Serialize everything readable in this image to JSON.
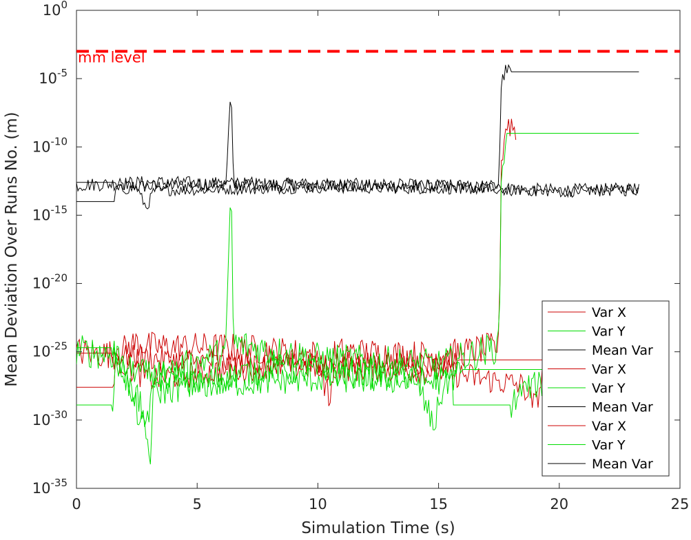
{
  "chart_data": {
    "type": "line",
    "title": "",
    "xlabel": "Simulation Time (s)",
    "ylabel": "Mean Deviation Over Runs No. (m)",
    "xlim": [
      0,
      25
    ],
    "ylim_exponents": [
      -35,
      0
    ],
    "yscale": "log",
    "grid": false,
    "xticks": [
      "0",
      "5",
      "10",
      "15",
      "20",
      "25"
    ],
    "yticks": [
      {
        "base": "10",
        "exp": "0"
      },
      {
        "base": "10",
        "exp": "-5"
      },
      {
        "base": "10",
        "exp": "-10"
      },
      {
        "base": "10",
        "exp": "-15"
      },
      {
        "base": "10",
        "exp": "-20"
      },
      {
        "base": "10",
        "exp": "-25"
      },
      {
        "base": "10",
        "exp": "-30"
      },
      {
        "base": "10",
        "exp": "-35"
      }
    ],
    "reference_line": {
      "label": "mm level",
      "value": 0.001,
      "color": "#ff0000",
      "style": "dashed"
    },
    "legend": {
      "location": "bottom-right",
      "entries": [
        {
          "label": "Var X",
          "color": "#cc0000"
        },
        {
          "label": "Var Y",
          "color": "#00dd00"
        },
        {
          "label": "Mean Var",
          "color": "#000000"
        },
        {
          "label": "Var X",
          "color": "#cc0000"
        },
        {
          "label": "Var Y",
          "color": "#00dd00"
        },
        {
          "label": "Mean Var",
          "color": "#000000"
        },
        {
          "label": "Var X",
          "color": "#cc0000"
        },
        {
          "label": "Var Y",
          "color": "#00dd00"
        },
        {
          "label": "Mean Var",
          "color": "#000000"
        }
      ]
    },
    "series": [
      {
        "color": "#000000",
        "noise": 0.5,
        "pts": [
          [
            0,
            -12.6
          ],
          [
            1.6,
            -12.6
          ],
          [
            1.6,
            -12.8
          ],
          [
            3.0,
            -12.9
          ],
          [
            6.2,
            -12.7
          ],
          [
            6.4,
            -5.2
          ],
          [
            6.5,
            -12.7
          ],
          [
            17.5,
            -13.0
          ],
          [
            17.8,
            -13.1
          ],
          [
            20,
            -13.2
          ],
          [
            23.3,
            -13.1
          ]
        ]
      },
      {
        "color": "#000000",
        "noise": 0.5,
        "pts": [
          [
            0,
            -12.8
          ],
          [
            3.0,
            -12.6
          ],
          [
            6.3,
            -12.7
          ],
          [
            6.4,
            -12.7
          ],
          [
            17.3,
            -12.9
          ],
          [
            17.5,
            -12.6
          ],
          [
            17.6,
            -5.3
          ],
          [
            17.8,
            -4.3
          ],
          [
            18.0,
            -4.5
          ],
          [
            23.3,
            -4.5
          ]
        ]
      },
      {
        "color": "#000000",
        "noise": 0.4,
        "pts": [
          [
            0,
            -14.0
          ],
          [
            1.6,
            -14.0
          ],
          [
            1.6,
            -13.2
          ],
          [
            2.5,
            -13.0
          ],
          [
            2.9,
            -14.5
          ],
          [
            3.2,
            -13.2
          ],
          [
            10,
            -13.0
          ],
          [
            17.5,
            -13.1
          ],
          [
            20,
            -13.3
          ],
          [
            23.3,
            -13.0
          ]
        ]
      },
      {
        "color": "#cc0000",
        "noise": 1.1,
        "pts": [
          [
            0,
            -25.0
          ],
          [
            1.6,
            -25.2
          ],
          [
            2.5,
            -24.3
          ],
          [
            3.0,
            -24.6
          ],
          [
            6.4,
            -24.7
          ],
          [
            10.0,
            -25.2
          ],
          [
            10.5,
            -28.8
          ],
          [
            10.7,
            -25.0
          ],
          [
            15,
            -25.3
          ],
          [
            17.5,
            -24.6
          ],
          [
            17.6,
            -11.0
          ],
          [
            17.8,
            -8.3
          ],
          [
            18.1,
            -8.4
          ],
          [
            18.2,
            -9.3
          ]
        ]
      },
      {
        "color": "#cc0000",
        "noise": 0.9,
        "pts": [
          [
            0,
            -25.1
          ],
          [
            1.5,
            -25.1
          ],
          [
            1.6,
            -25.3
          ],
          [
            6,
            -25.8
          ],
          [
            12,
            -25.9
          ],
          [
            15.8,
            -25.8
          ],
          [
            15.8,
            -25.6
          ],
          [
            23.3,
            -25.6
          ]
        ]
      },
      {
        "color": "#cc0000",
        "noise": 1.0,
        "pts": [
          [
            0,
            -27.6
          ],
          [
            1.5,
            -27.6
          ],
          [
            1.6,
            -25.5
          ],
          [
            3.0,
            -27.0
          ],
          [
            8,
            -26.0
          ],
          [
            15,
            -26.4
          ],
          [
            18.5,
            -27.5
          ],
          [
            19.0,
            -29.0
          ],
          [
            19.3,
            -26.8
          ]
        ]
      },
      {
        "color": "#00dd00",
        "noise": 1.2,
        "pts": [
          [
            0,
            -24.9
          ],
          [
            1.6,
            -25.2
          ],
          [
            2.9,
            -30.0
          ],
          [
            3.0,
            -31.2
          ],
          [
            3.1,
            -27.0
          ],
          [
            6.2,
            -25.0
          ],
          [
            6.4,
            -12.0
          ],
          [
            6.5,
            -24.4
          ],
          [
            10,
            -25.5
          ],
          [
            15,
            -26.0
          ],
          [
            17.5,
            -24.6
          ],
          [
            17.6,
            -12.5
          ],
          [
            17.8,
            -9.0
          ],
          [
            23.3,
            -9.0
          ]
        ]
      },
      {
        "color": "#00dd00",
        "noise": 1.1,
        "pts": [
          [
            0,
            -24.7
          ],
          [
            1.5,
            -24.7
          ],
          [
            2.0,
            -26.5
          ],
          [
            3.0,
            -32.0
          ],
          [
            3.05,
            -34.3
          ],
          [
            3.15,
            -28.0
          ],
          [
            8,
            -26.2
          ],
          [
            14,
            -26.8
          ],
          [
            14.8,
            -30.5
          ],
          [
            15.2,
            -27.5
          ],
          [
            16,
            -26.3
          ],
          [
            23.3,
            -26.3
          ]
        ]
      },
      {
        "color": "#00dd00",
        "noise": 1.0,
        "pts": [
          [
            0,
            -28.9
          ],
          [
            1.5,
            -28.9
          ],
          [
            1.6,
            -26.0
          ],
          [
            5,
            -27.5
          ],
          [
            10,
            -27.0
          ],
          [
            15,
            -27.2
          ],
          [
            15.6,
            -26.8
          ],
          [
            15.6,
            -28.9
          ],
          [
            18.0,
            -28.9
          ],
          [
            18.5,
            -27.7
          ],
          [
            20,
            -27.0
          ],
          [
            23.3,
            -26.8
          ]
        ]
      }
    ]
  }
}
